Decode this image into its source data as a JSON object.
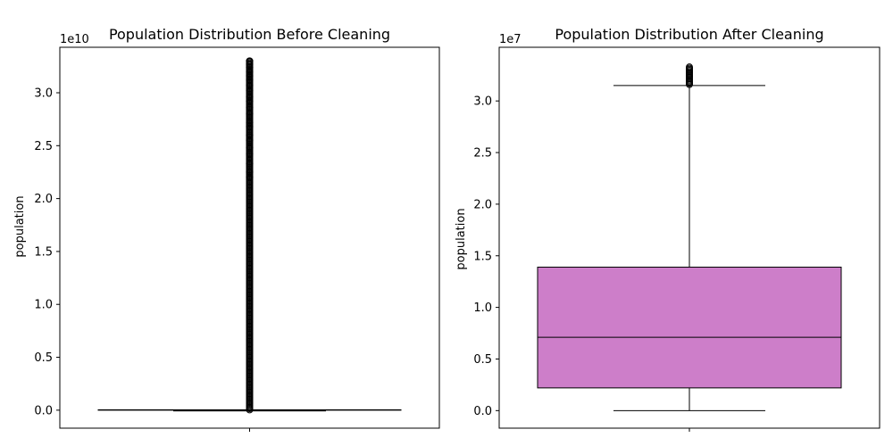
{
  "chart_data": [
    {
      "type": "box",
      "title": "Population Distribution Before Cleaning",
      "ylabel": "population",
      "offset_text": "1e10",
      "scale": 10000000000,
      "ylim": [
        -0.17,
        3.43
      ],
      "ticks": [
        0.0,
        0.5,
        1.0,
        1.5,
        2.0,
        2.5,
        3.0
      ],
      "tick_labels": [
        "0.0",
        "0.5",
        "1.0",
        "1.5",
        "2.0",
        "2.5",
        "3.0"
      ],
      "box": {
        "q1": 0.0001,
        "median": 0.00035,
        "q3": 0.0014,
        "whisker_low": 0.0,
        "whisker_high": 0.0035
      },
      "box_color": "#cd7ec9",
      "outlier_range": [
        0.004,
        3.3
      ],
      "outliers_upper_sparse": [
        2.2,
        2.25,
        2.33,
        2.42,
        2.48,
        2.55,
        2.6,
        2.68,
        2.72,
        2.8,
        2.86,
        2.92,
        2.96,
        3.02,
        3.07,
        3.12,
        3.16,
        3.2,
        3.24,
        3.27,
        3.3
      ]
    },
    {
      "type": "box",
      "title": "Population Distribution After Cleaning",
      "ylabel": "population",
      "offset_text": "1e7",
      "scale": 10000000,
      "ylim": [
        -0.17,
        3.52
      ],
      "ticks": [
        0.0,
        0.5,
        1.0,
        1.5,
        2.0,
        2.5,
        3.0
      ],
      "tick_labels": [
        "0.0",
        "0.5",
        "1.0",
        "1.5",
        "2.0",
        "2.5",
        "3.0"
      ],
      "box": {
        "q1": 0.22,
        "median": 0.71,
        "q3": 1.39,
        "whisker_low": 0.0,
        "whisker_high": 3.15
      },
      "box_color": "#cd7ec9",
      "outlier_range": [
        3.16,
        3.33
      ],
      "outliers_upper_sparse": []
    }
  ]
}
